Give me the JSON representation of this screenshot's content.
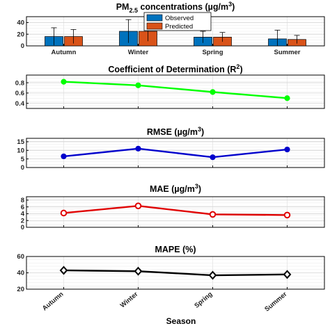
{
  "chart_data": [
    {
      "type": "bar",
      "title": "PM2.5 concentrations (µg/m3)",
      "title_parts": {
        "main": "PM",
        "sub": "2.5",
        "mid": " concentrations (µg/m",
        "sup": "3",
        "end": ")"
      },
      "categories": [
        "Autumn",
        "Winter",
        "Spring",
        "Summer"
      ],
      "ylim": [
        0,
        50
      ],
      "yticks": [
        "0",
        "20",
        "40"
      ],
      "series": [
        {
          "name": "Observed",
          "color": "#0072BD",
          "values": [
            16,
            25,
            15,
            12
          ],
          "err": [
            15,
            20,
            10,
            15
          ]
        },
        {
          "name": "Predicted",
          "color": "#D95319",
          "values": [
            16,
            25,
            15,
            11
          ],
          "err": [
            12,
            17,
            8,
            7
          ]
        }
      ],
      "legend": "top-center",
      "grid": true
    },
    {
      "type": "line",
      "title": "Coefficient of Determination (R2)",
      "title_parts": {
        "main": "Coefficient of Determination (R",
        "sup": "2",
        "end": ")"
      },
      "color": "#00FF00",
      "marker": "circle",
      "values": [
        0.82,
        0.75,
        0.62,
        0.5
      ],
      "ylim": [
        0.3,
        0.95
      ],
      "yticks": [
        "0.4",
        "0.6",
        "0.8"
      ],
      "grid": true
    },
    {
      "type": "line",
      "title": "RMSE (µg/m3)",
      "title_parts": {
        "main": "RMSE (µg/m",
        "sup": "3",
        "end": ")"
      },
      "color": "#0000CC",
      "marker": "circle",
      "values": [
        6.5,
        11,
        6,
        10.5
      ],
      "ylim": [
        0,
        17
      ],
      "yticks": [
        "0",
        "5",
        "10",
        "15"
      ],
      "grid": true
    },
    {
      "type": "line",
      "title": "MAE (µg/m3)",
      "title_parts": {
        "main": "MAE (µg/m",
        "sup": "3",
        "end": ")"
      },
      "color": "#E00000",
      "marker": "circle-open",
      "values": [
        4.2,
        6.3,
        3.8,
        3.6
      ],
      "ylim": [
        0,
        9
      ],
      "yticks": [
        "0",
        "2",
        "4",
        "6",
        "8"
      ],
      "grid": true
    },
    {
      "type": "line",
      "title": "MAPE (%)",
      "title_parts": {
        "main": "MAPE (%)"
      },
      "color": "#000000",
      "marker": "diamond-open",
      "values": [
        43,
        42,
        37,
        38
      ],
      "ylim": [
        20,
        60
      ],
      "yticks": [
        "20",
        "40",
        "60"
      ],
      "grid": true
    }
  ],
  "x_axis": {
    "categories": [
      "Autumn",
      "Winter",
      "Spring",
      "Summer"
    ],
    "label": "Season"
  }
}
